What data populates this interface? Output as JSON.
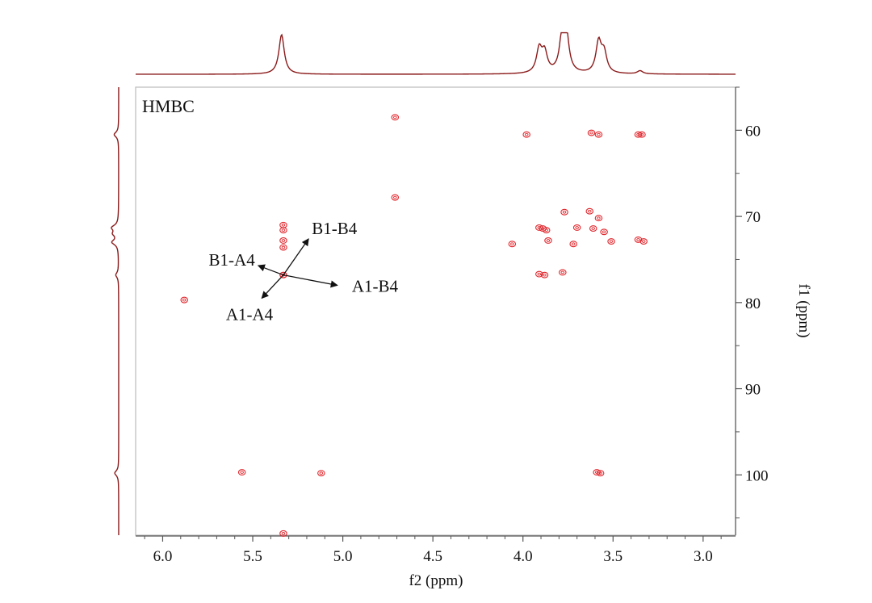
{
  "chart_data": {
    "type": "scatter",
    "subtype": "2D NMR contour plot",
    "title": "HMBC",
    "xlabel": "f2 (ppm)",
    "ylabel": "f1 (ppm)",
    "xlim": [
      6.15,
      2.82
    ],
    "ylim": [
      55,
      107
    ],
    "x_inverted": true,
    "y_inverted": true,
    "x_ticks": [
      "6.0",
      "5.5",
      "5.0",
      "4.5",
      "4.0",
      "3.5",
      "3.0"
    ],
    "x_tick_values": [
      6.0,
      5.5,
      5.0,
      4.5,
      4.0,
      3.5,
      3.0
    ],
    "y_ticks": [
      "60",
      "70",
      "80",
      "90",
      "100"
    ],
    "y_tick_values": [
      60,
      70,
      80,
      90,
      100
    ],
    "grid": false,
    "colors": {
      "contour": "#e0242a",
      "projection": "#8b1a1a",
      "axis": "#555555",
      "frame": "#bbbbbb",
      "annotation": "#111111"
    },
    "series": [
      {
        "type": "cross-peaks",
        "x": [
          4.71,
          4.71,
          3.98,
          3.62,
          3.58,
          3.36,
          3.34,
          5.33,
          5.33,
          5.33,
          5.33,
          5.33,
          3.91,
          3.89,
          3.87,
          3.77,
          3.63,
          3.58,
          3.61,
          3.55,
          3.51,
          3.36,
          3.33,
          4.06,
          3.86,
          3.7,
          3.72,
          3.91,
          3.88,
          3.78,
          5.33,
          5.88,
          5.56,
          5.12,
          3.59,
          3.57,
          5.33
        ],
        "y": [
          58.5,
          67.8,
          60.5,
          60.3,
          60.5,
          60.5,
          60.5,
          71.0,
          71.6,
          72.8,
          73.6,
          76.8,
          71.3,
          71.4,
          71.6,
          69.5,
          69.4,
          70.2,
          71.4,
          71.8,
          72.9,
          72.7,
          72.9,
          73.2,
          72.8,
          71.3,
          73.2,
          76.7,
          76.8,
          76.5,
          76.8,
          79.7,
          99.7,
          99.8,
          99.7,
          99.8,
          106.8
        ]
      }
    ],
    "projections": {
      "top": {
        "axis": "f2",
        "peaks": [
          {
            "x": 5.34,
            "height": 1.0
          },
          {
            "x": 3.91,
            "height": 0.6
          },
          {
            "x": 3.88,
            "height": 0.5
          },
          {
            "x": 3.78,
            "height": 1.0
          },
          {
            "x": 3.76,
            "height": 0.85
          },
          {
            "x": 3.58,
            "height": 0.78
          },
          {
            "x": 3.55,
            "height": 0.5
          },
          {
            "x": 3.35,
            "height": 0.08
          }
        ]
      },
      "left": {
        "axis": "f1",
        "peaks": [
          {
            "y": 60.5,
            "height": 0.4
          },
          {
            "y": 71.3,
            "height": 0.55
          },
          {
            "y": 72.0,
            "height": 0.4
          },
          {
            "y": 73.0,
            "height": 0.55
          },
          {
            "y": 76.8,
            "height": 0.25
          },
          {
            "y": 99.8,
            "height": 0.35
          }
        ]
      }
    },
    "annotations": [
      {
        "label": "B1-B4",
        "from": [
          5.33,
          76.8
        ],
        "to": [
          5.19,
          72.6
        ]
      },
      {
        "label": "B1-A4",
        "from": [
          5.33,
          76.8
        ],
        "to": [
          5.47,
          75.7
        ]
      },
      {
        "label": "A1-B4",
        "from": [
          5.33,
          76.8
        ],
        "to": [
          5.03,
          78.0
        ]
      },
      {
        "label": "A1-A4",
        "from": [
          5.33,
          76.8
        ],
        "to": [
          5.45,
          79.5
        ]
      }
    ]
  }
}
